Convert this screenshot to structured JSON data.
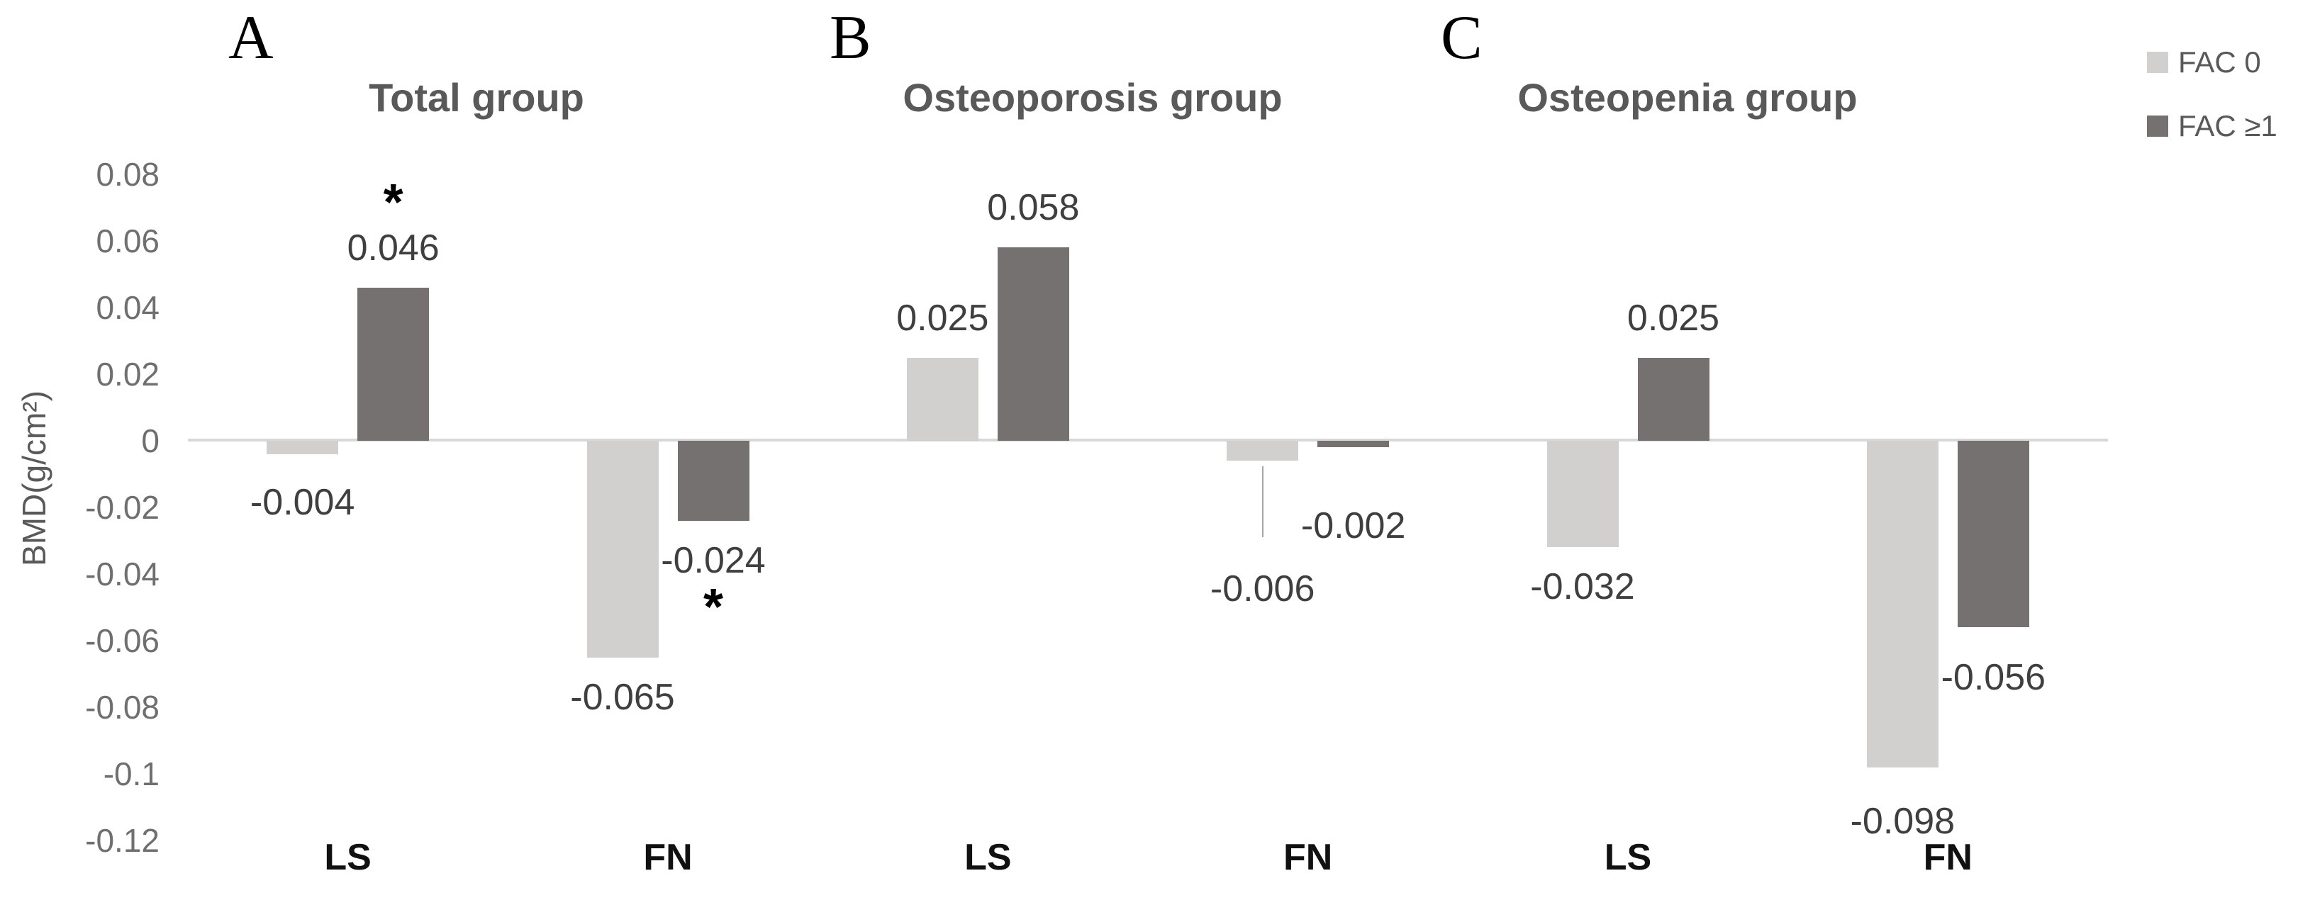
{
  "figure": {
    "colors": {
      "series_light": "#d2cfcf",
      "series_dark": "#767171",
      "axis_line": "#d8d8d8",
      "title_text": "#595959",
      "tick_text": "#6f6f6f",
      "value_text": "#3f3f3f"
    },
    "y_axis": {
      "title": "BMD(g/cm²)"
    },
    "legend": {
      "items": [
        {
          "label": "FAC 0",
          "swatch": "series_light"
        },
        {
          "label": "FAC ≥1",
          "swatch": "series_dark"
        }
      ]
    }
  },
  "chart_data": {
    "type": "bar",
    "ylabel": "BMD(g/cm²)",
    "ylim": [
      -0.12,
      0.08
    ],
    "grid": false,
    "legend_position": "top-right",
    "series_names": [
      "FAC 0",
      "FAC ≥1"
    ],
    "y_ticks": [
      {
        "value": 0.08,
        "label": "0.08"
      },
      {
        "value": 0.06,
        "label": "0.06"
      },
      {
        "value": 0.04,
        "label": "0.04"
      },
      {
        "value": 0.02,
        "label": "0.02"
      },
      {
        "value": 0,
        "label": "0"
      },
      {
        "value": -0.02,
        "label": "-0.02"
      },
      {
        "value": -0.04,
        "label": "-0.04"
      },
      {
        "value": -0.06,
        "label": "-0.06"
      },
      {
        "value": -0.08,
        "label": "-0.08"
      },
      {
        "value": -0.1,
        "label": "-0.1"
      },
      {
        "value": -0.12,
        "label": "-0.12"
      }
    ],
    "panels": [
      {
        "letter": "A",
        "title": "Total group",
        "groups": [
          {
            "category": "LS",
            "bars": [
              {
                "series": "FAC 0",
                "value": -0.004,
                "label": "-0.004",
                "label_dy": 12
              },
              {
                "series": "FAC ≥1",
                "value": 0.046,
                "label": "0.046",
                "star": "above"
              }
            ]
          },
          {
            "category": "FN",
            "bars": [
              {
                "series": "FAC 0",
                "value": -0.065,
                "label": "-0.065"
              },
              {
                "series": "FAC ≥1",
                "value": -0.024,
                "label": "-0.024",
                "star": "below"
              }
            ]
          }
        ]
      },
      {
        "letter": "B",
        "title": "Osteoporosis group",
        "groups": [
          {
            "category": "LS",
            "bars": [
              {
                "series": "FAC 0",
                "value": 0.025,
                "label": "0.025"
              },
              {
                "series": "FAC ≥1",
                "value": 0.058,
                "label": "0.058"
              }
            ]
          },
          {
            "category": "FN",
            "bars": [
              {
                "series": "FAC 0",
                "value": -0.006,
                "label": "-0.006",
                "leader": true,
                "label_dy": 125
              },
              {
                "series": "FAC ≥1",
                "value": -0.002,
                "label": "-0.002",
                "label_dy": 55
              }
            ]
          }
        ]
      },
      {
        "letter": "C",
        "title": "Osteopenia group",
        "groups": [
          {
            "category": "LS",
            "bars": [
              {
                "series": "FAC 0",
                "value": -0.032,
                "label": "-0.032"
              },
              {
                "series": "FAC ≥1",
                "value": 0.025,
                "label": "0.025"
              }
            ]
          },
          {
            "category": "FN",
            "bars": [
              {
                "series": "FAC 0",
                "value": -0.098,
                "label": "-0.098",
                "label_dy": 20
              },
              {
                "series": "FAC ≥1",
                "value": -0.056,
                "label": "-0.056",
                "label_dy": 15
              }
            ]
          }
        ]
      }
    ]
  }
}
